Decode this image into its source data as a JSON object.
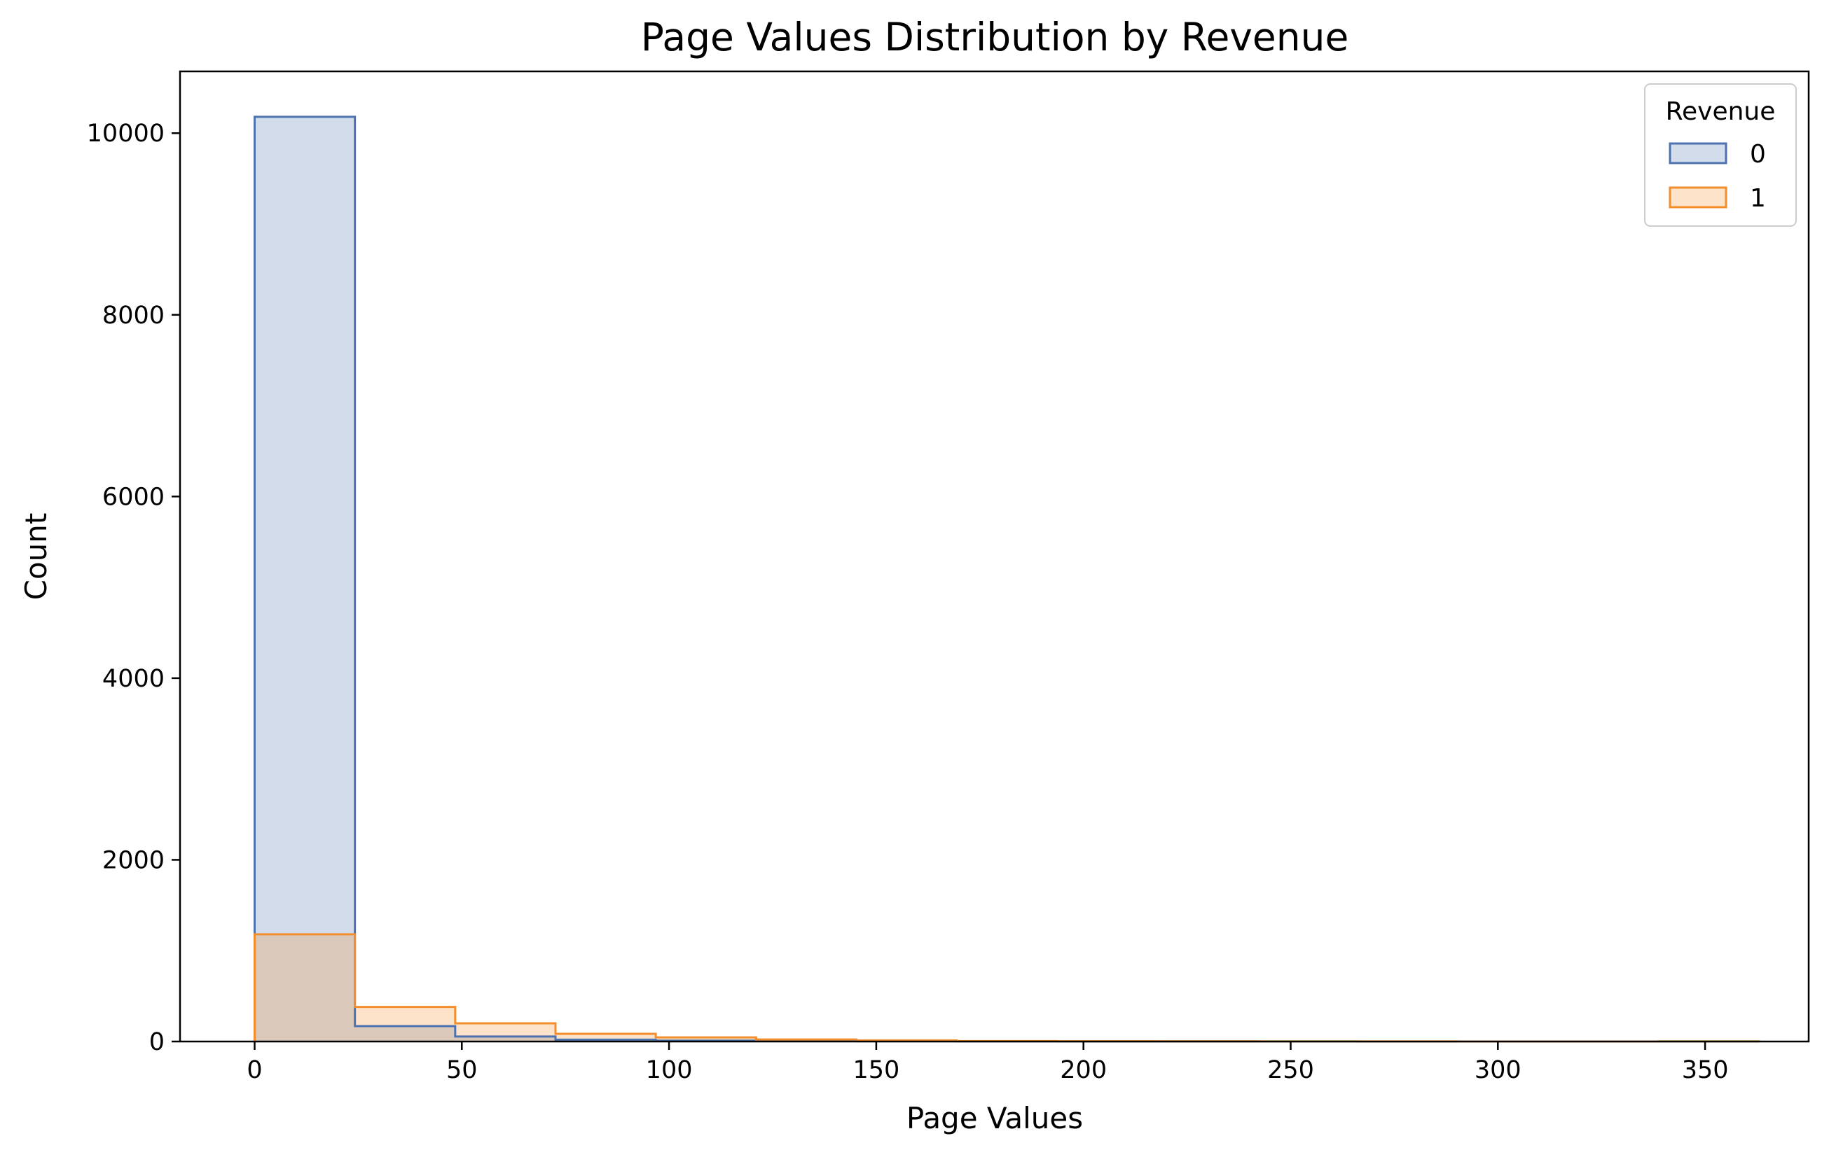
{
  "chart_data": {
    "type": "histogram",
    "title": "Page Values Distribution by Revenue",
    "xlabel": "Page Values",
    "ylabel": "Count",
    "xlim": [
      -18,
      375
    ],
    "ylim": [
      0,
      10680
    ],
    "xticks": [
      0,
      50,
      100,
      150,
      200,
      250,
      300,
      350
    ],
    "yticks": [
      0,
      2000,
      4000,
      6000,
      8000,
      10000
    ],
    "bin_edges": [
      0,
      24.2,
      48.4,
      72.6,
      96.8,
      121,
      145.2,
      169.4,
      193.6,
      217.8,
      242,
      266.2,
      290.4,
      314.6,
      338.8,
      363
    ],
    "grid": false,
    "legend": {
      "title": "Revenue",
      "placement": "top-right"
    },
    "series": [
      {
        "name": "0",
        "color": "#4c72b0",
        "values": [
          10180,
          170,
          55,
          20,
          10,
          5,
          3,
          2,
          1,
          1,
          1,
          0,
          0,
          0,
          1
        ]
      },
      {
        "name": "1",
        "color": "#f28e2b",
        "values": [
          1180,
          380,
          200,
          85,
          45,
          22,
          12,
          5,
          3,
          2,
          1,
          1,
          0,
          0,
          1
        ]
      }
    ]
  }
}
